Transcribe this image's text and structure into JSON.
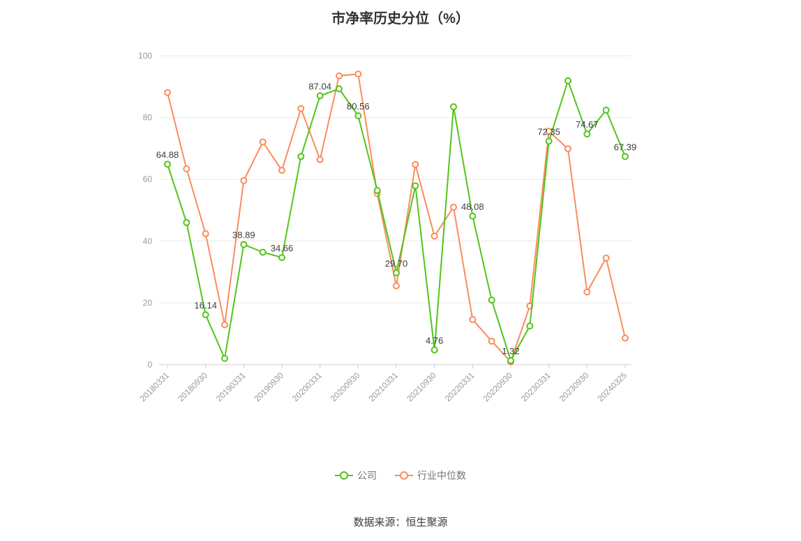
{
  "title": "市净率历史分位（%）",
  "source_note": "数据来源：恒生聚源",
  "legend": [
    {
      "label": "公司",
      "color": "#52c41a"
    },
    {
      "label": "行业中位数",
      "color": "#fa8c5e"
    }
  ],
  "chart_data": {
    "type": "line",
    "title": "市净率历史分位（%）",
    "ylim": [
      0,
      100
    ],
    "y_ticks": [
      0,
      20,
      40,
      60,
      80,
      100
    ],
    "grid": true,
    "legend_position": "bottom",
    "x_tick_labels": [
      "20180331",
      "20180930",
      "20190331",
      "20190930",
      "20200331",
      "20200930",
      "20210331",
      "20210930",
      "20220331",
      "20220930",
      "20230331",
      "20230930",
      "20240325"
    ],
    "x_tick_indices": [
      0,
      2,
      4,
      6,
      8,
      10,
      12,
      14,
      16,
      18,
      20,
      22,
      24
    ],
    "series": [
      {
        "name": "公司",
        "color": "#52c41a",
        "values": [
          64.88,
          46.0,
          16.14,
          2.0,
          38.89,
          36.4,
          34.66,
          67.4,
          87.04,
          89.3,
          80.56,
          56.4,
          29.7,
          57.9,
          4.76,
          83.5,
          48.08,
          20.9,
          1.32,
          12.5,
          72.35,
          91.9,
          74.67,
          82.4,
          67.39
        ],
        "point_labels": {
          "0": "64.88",
          "2": "16.14",
          "4": "38.89",
          "6": "34.66",
          "8": "87.04",
          "10": "80.56",
          "12": "29.70",
          "14": "4.76",
          "16": "48.08",
          "18": "1.32",
          "20": "72.35",
          "22": "74.67",
          "24": "67.39"
        }
      },
      {
        "name": "行业中位数",
        "color": "#fa8c5e",
        "values": [
          88.1,
          63.4,
          42.4,
          12.9,
          59.6,
          72.1,
          62.9,
          82.9,
          66.4,
          93.5,
          94.1,
          55.4,
          25.5,
          64.8,
          41.6,
          51,
          14.6,
          7.6,
          0.9,
          19,
          75.6,
          69.9,
          23.5,
          34.5,
          8.6
        ],
        "point_labels": {}
      }
    ]
  }
}
